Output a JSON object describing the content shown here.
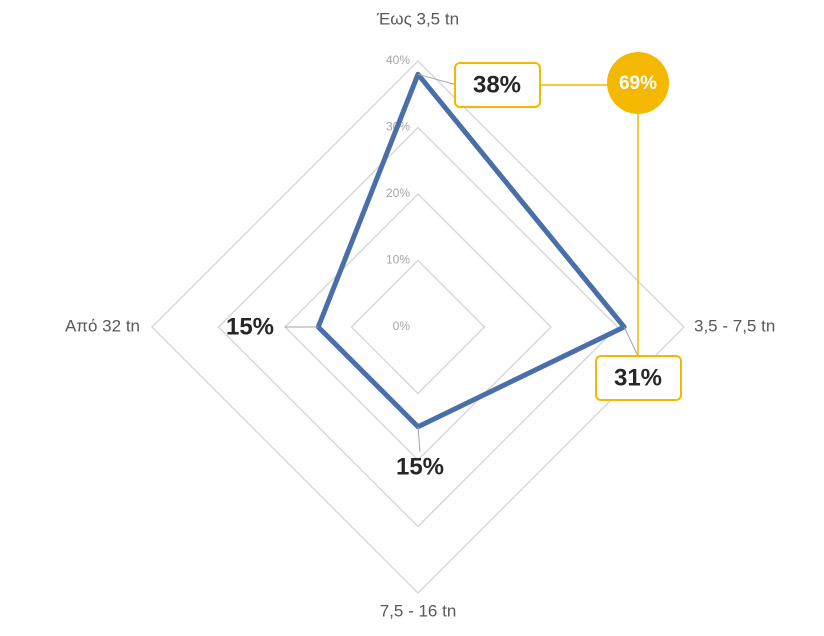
{
  "chart_data": {
    "type": "radar",
    "categories": [
      "Έως 3,5 tn",
      "3,5 - 7,5 tn",
      "7,5 - 16 tn",
      "Από 32 tn"
    ],
    "values": [
      38,
      31,
      15,
      15
    ],
    "value_labels": [
      "38%",
      "31%",
      "15%",
      "15%"
    ],
    "color": "#4a6fa8",
    "ylim": [
      0,
      40
    ],
    "yticks": [
      {
        "value": 0,
        "label": "0%"
      },
      {
        "value": 10,
        "label": "10%"
      },
      {
        "value": 20,
        "label": "20%"
      },
      {
        "value": 30,
        "label": "30%"
      },
      {
        "value": 40,
        "label": "40%"
      }
    ],
    "grid": true,
    "annotations": [
      "69%"
    ],
    "highlight_color": "#f5b800"
  }
}
